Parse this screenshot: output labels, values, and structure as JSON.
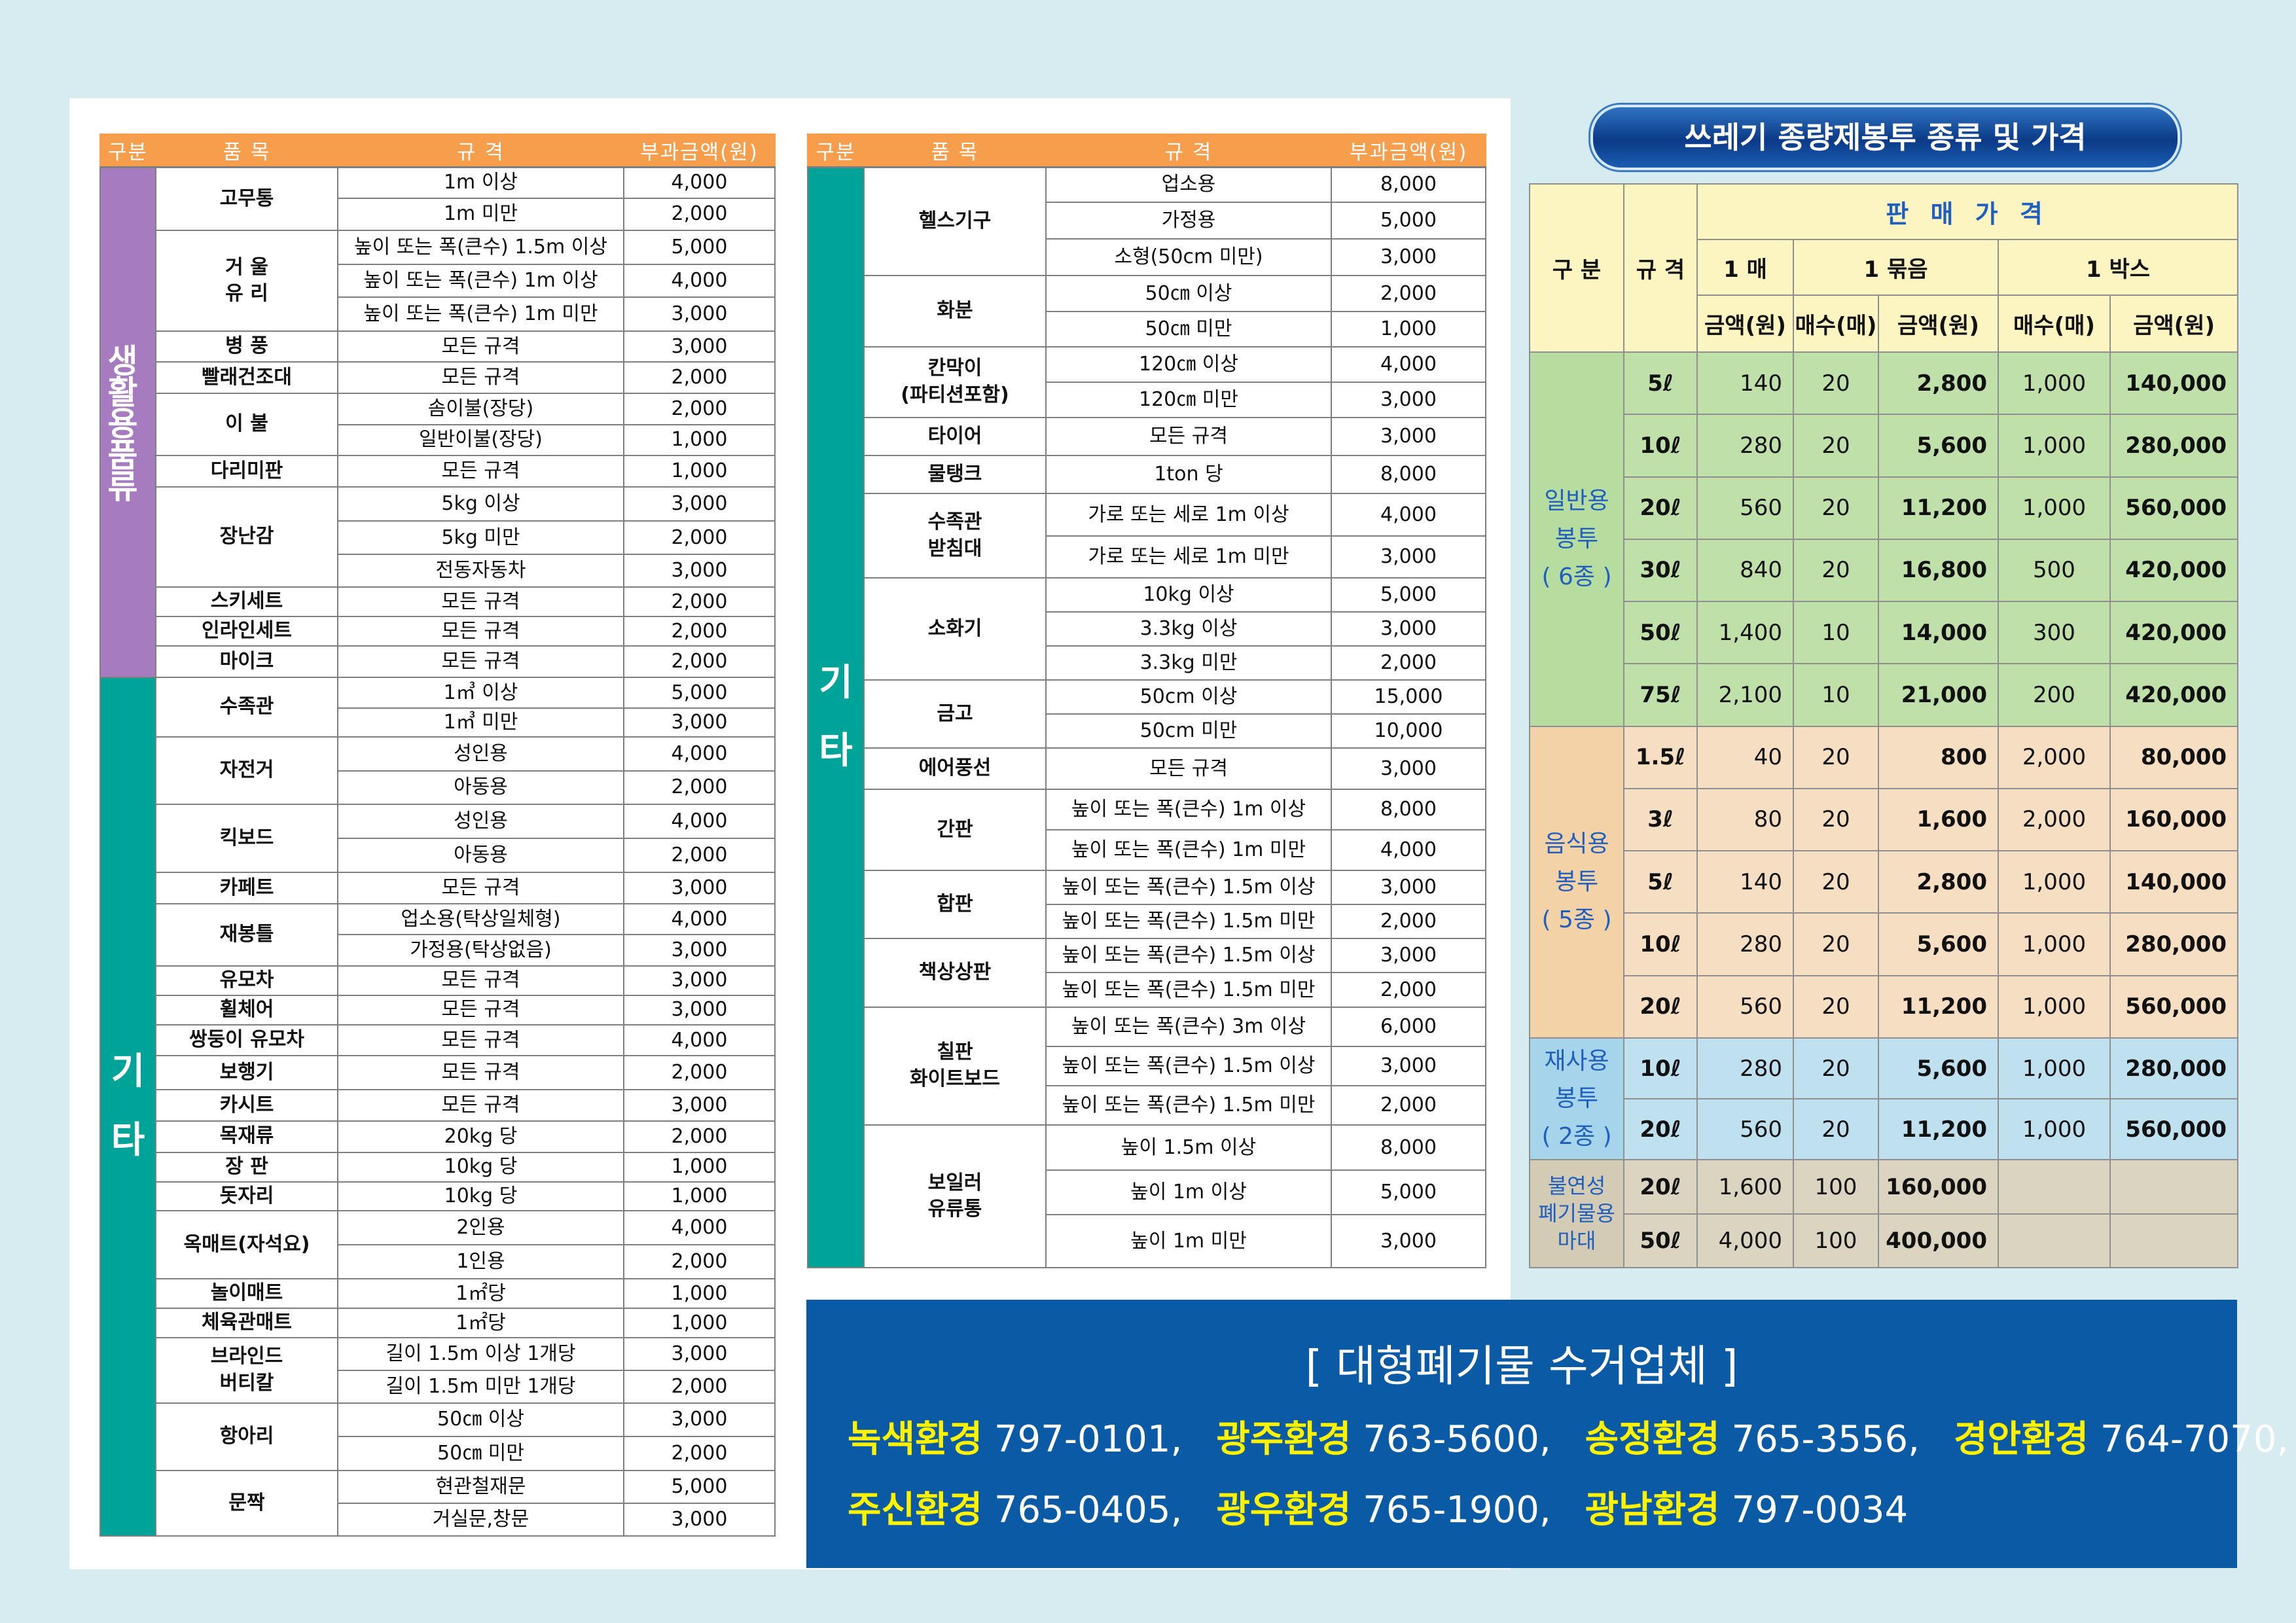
{
  "headers": {
    "category": "구분",
    "item": "품 목",
    "spec": "규 격",
    "fee": "부과금액(원)"
  },
  "left_table": {
    "categories": [
      {
        "label": "생활용품류"
      },
      {
        "label": "기 타",
        "chars": [
          "기",
          "타"
        ]
      }
    ],
    "rows": [
      {
        "item": "고무통",
        "spec": "1m 이상",
        "fee": "4,000"
      },
      {
        "spec": "1m 미만",
        "fee": "2,000"
      },
      {
        "item": "거 울\n유 리",
        "spec": "높이 또는 폭(큰수) 1.5m 이상",
        "fee": "5,000"
      },
      {
        "spec": "높이 또는 폭(큰수) 1m 이상",
        "fee": "4,000"
      },
      {
        "spec": "높이 또는 폭(큰수) 1m 미만",
        "fee": "3,000"
      },
      {
        "item": "병 풍",
        "spec": "모든 규격",
        "fee": "3,000"
      },
      {
        "item": "빨래건조대",
        "spec": "모든 규격",
        "fee": "2,000"
      },
      {
        "item": "이 불",
        "spec": "솜이불(장당)",
        "fee": "2,000"
      },
      {
        "spec": "일반이불(장당)",
        "fee": "1,000"
      },
      {
        "item": "다리미판",
        "spec": "모든 규격",
        "fee": "1,000"
      },
      {
        "item": "장난감",
        "spec": "5kg 이상",
        "fee": "3,000"
      },
      {
        "spec": "5kg 미만",
        "fee": "2,000"
      },
      {
        "spec": "전동자동차",
        "fee": "3,000"
      },
      {
        "item": "스키세트",
        "spec": "모든 규격",
        "fee": "2,000"
      },
      {
        "item": "인라인세트",
        "spec": "모든 규격",
        "fee": "2,000"
      },
      {
        "item": "마이크",
        "spec": "모든 규격",
        "fee": "2,000"
      },
      {
        "item": "수족관",
        "spec": "1㎥ 이상",
        "fee": "5,000"
      },
      {
        "spec": "1㎥ 미만",
        "fee": "3,000"
      },
      {
        "item": "자전거",
        "spec": "성인용",
        "fee": "4,000"
      },
      {
        "spec": "아동용",
        "fee": "2,000"
      },
      {
        "item": "킥보드",
        "spec": "성인용",
        "fee": "4,000"
      },
      {
        "spec": "아동용",
        "fee": "2,000"
      },
      {
        "item": "카페트",
        "spec": "모든 규격",
        "fee": "3,000"
      },
      {
        "item": "재봉틀",
        "spec": "업소용(탁상일체형)",
        "fee": "4,000"
      },
      {
        "spec": "가정용(탁상없음)",
        "fee": "3,000"
      },
      {
        "item": "유모차",
        "spec": "모든 규격",
        "fee": "3,000"
      },
      {
        "item": "휠체어",
        "spec": "모든 규격",
        "fee": "3,000"
      },
      {
        "item": "쌍둥이 유모차",
        "spec": "모든 규격",
        "fee": "4,000"
      },
      {
        "item": "보행기",
        "spec": "모든 규격",
        "fee": "2,000"
      },
      {
        "item": "카시트",
        "spec": "모든 규격",
        "fee": "3,000"
      },
      {
        "item": "목재류",
        "spec": "20kg 당",
        "fee": "2,000"
      },
      {
        "item": "장 판",
        "spec": "10kg 당",
        "fee": "1,000"
      },
      {
        "item": "돗자리",
        "spec": "10kg 당",
        "fee": "1,000"
      },
      {
        "item": "옥매트(자석요)",
        "spec": "2인용",
        "fee": "4,000"
      },
      {
        "spec": "1인용",
        "fee": "2,000"
      },
      {
        "item": "놀이매트",
        "spec": "1㎡당",
        "fee": "1,000"
      },
      {
        "item": "체육관매트",
        "spec": "1㎡당",
        "fee": "1,000"
      },
      {
        "item": "브라인드\n버티칼",
        "spec": "길이 1.5m 이상 1개당",
        "fee": "3,000"
      },
      {
        "spec": "길이 1.5m 미만 1개당",
        "fee": "2,000"
      },
      {
        "item": "항아리",
        "spec": "50㎝ 이상",
        "fee": "3,000"
      },
      {
        "spec": "50㎝ 미만",
        "fee": "2,000"
      },
      {
        "item": "문짝",
        "spec": "현관철재문",
        "fee": "5,000"
      },
      {
        "spec": "거실문,창문",
        "fee": "3,000"
      }
    ]
  },
  "middle_table": {
    "category": {
      "label": "기 타",
      "chars": [
        "기",
        "타"
      ]
    },
    "rows": [
      {
        "item": "헬스기구",
        "spec": "업소용",
        "fee": "8,000"
      },
      {
        "spec": "가정용",
        "fee": "5,000"
      },
      {
        "spec": "소형(50cm 미만)",
        "fee": "3,000"
      },
      {
        "item": "화분",
        "spec": "50㎝ 이상",
        "fee": "2,000"
      },
      {
        "spec": "50㎝ 미만",
        "fee": "1,000"
      },
      {
        "item": "칸막이\n(파티션포함)",
        "spec": "120㎝ 이상",
        "fee": "4,000"
      },
      {
        "spec": "120㎝ 미만",
        "fee": "3,000"
      },
      {
        "item": "타이어",
        "spec": "모든 규격",
        "fee": "3,000"
      },
      {
        "item": "물탱크",
        "spec": "1ton 당",
        "fee": "8,000"
      },
      {
        "item": "수족관\n받침대",
        "spec": "가로 또는 세로 1m 이상",
        "fee": "4,000"
      },
      {
        "spec": "가로 또는 세로 1m 미만",
        "fee": "3,000"
      },
      {
        "item": "소화기",
        "spec": "10kg 이상",
        "fee": "5,000"
      },
      {
        "spec": "3.3kg 이상",
        "fee": "3,000"
      },
      {
        "spec": "3.3kg 미만",
        "fee": "2,000"
      },
      {
        "item": "금고",
        "spec": "50cm 이상",
        "fee": "15,000"
      },
      {
        "spec": "50cm 미만",
        "fee": "10,000"
      },
      {
        "item": "에어풍선",
        "spec": "모든 규격",
        "fee": "3,000"
      },
      {
        "item": "간판",
        "spec": "높이 또는 폭(큰수) 1m 이상",
        "fee": "8,000"
      },
      {
        "spec": "높이 또는 폭(큰수) 1m 미만",
        "fee": "4,000"
      },
      {
        "item": "합판",
        "spec": "높이 또는 폭(큰수) 1.5m 이상",
        "fee": "3,000"
      },
      {
        "spec": "높이 또는 폭(큰수) 1.5m 미만",
        "fee": "2,000"
      },
      {
        "item": "책상상판",
        "spec": "높이 또는 폭(큰수) 1.5m 이상",
        "fee": "3,000"
      },
      {
        "spec": "높이 또는 폭(큰수) 1.5m 미만",
        "fee": "2,000"
      },
      {
        "item": "칠판\n화이트보드",
        "spec": "높이 또는 폭(큰수) 3m 이상",
        "fee": "6,000"
      },
      {
        "spec": "높이 또는 폭(큰수) 1.5m 이상",
        "fee": "3,000"
      },
      {
        "spec": "높이 또는 폭(큰수) 1.5m 미만",
        "fee": "2,000"
      },
      {
        "item": "보일러\n유류통",
        "spec": "높이 1.5m 이상",
        "fee": "8,000"
      },
      {
        "spec": "높이 1m 이상",
        "fee": "5,000"
      },
      {
        "spec": "높이 1m 미만",
        "fee": "3,000"
      }
    ]
  },
  "price_table": {
    "title": "쓰레기 종량제봉투 종류 및 가격",
    "headers": {
      "category": "구 분",
      "size": "규 격",
      "sale_price": "판 매 가 격",
      "single": "1 매",
      "bundle": "1 묶음",
      "box": "1 박스",
      "amount": "금액(원)",
      "count": "매수(매)"
    },
    "groups": [
      {
        "label": "일반용\n봉투\n( 6종 )",
        "rows": [
          {
            "size": "5ℓ",
            "single": "140",
            "bundle_count": "20",
            "bundle_amount": "2,800",
            "box_count": "1,000",
            "box_amount": "140,000"
          },
          {
            "size": "10ℓ",
            "single": "280",
            "bundle_count": "20",
            "bundle_amount": "5,600",
            "box_count": "1,000",
            "box_amount": "280,000"
          },
          {
            "size": "20ℓ",
            "single": "560",
            "bundle_count": "20",
            "bundle_amount": "11,200",
            "box_count": "1,000",
            "box_amount": "560,000"
          },
          {
            "size": "30ℓ",
            "single": "840",
            "bundle_count": "20",
            "bundle_amount": "16,800",
            "box_count": "500",
            "box_amount": "420,000"
          },
          {
            "size": "50ℓ",
            "single": "1,400",
            "bundle_count": "10",
            "bundle_amount": "14,000",
            "box_count": "300",
            "box_amount": "420,000"
          },
          {
            "size": "75ℓ",
            "single": "2,100",
            "bundle_count": "10",
            "bundle_amount": "21,000",
            "box_count": "200",
            "box_amount": "420,000"
          }
        ]
      },
      {
        "label": "음식용\n봉투\n( 5종 )",
        "rows": [
          {
            "size": "1.5ℓ",
            "single": "40",
            "bundle_count": "20",
            "bundle_amount": "800",
            "box_count": "2,000",
            "box_amount": "80,000"
          },
          {
            "size": "3ℓ",
            "single": "80",
            "bundle_count": "20",
            "bundle_amount": "1,600",
            "box_count": "2,000",
            "box_amount": "160,000"
          },
          {
            "size": "5ℓ",
            "single": "140",
            "bundle_count": "20",
            "bundle_amount": "2,800",
            "box_count": "1,000",
            "box_amount": "140,000"
          },
          {
            "size": "10ℓ",
            "single": "280",
            "bundle_count": "20",
            "bundle_amount": "5,600",
            "box_count": "1,000",
            "box_amount": "280,000"
          },
          {
            "size": "20ℓ",
            "single": "560",
            "bundle_count": "20",
            "bundle_amount": "11,200",
            "box_count": "1,000",
            "box_amount": "560,000"
          }
        ]
      },
      {
        "label": "재사용\n봉투\n( 2종 )",
        "rows": [
          {
            "size": "10ℓ",
            "single": "280",
            "bundle_count": "20",
            "bundle_amount": "5,600",
            "box_count": "1,000",
            "box_amount": "280,000"
          },
          {
            "size": "20ℓ",
            "single": "560",
            "bundle_count": "20",
            "bundle_amount": "11,200",
            "box_count": "1,000",
            "box_amount": "560,000"
          }
        ]
      },
      {
        "label": "불연성\n폐기물용\n마대",
        "rows": [
          {
            "size": "20ℓ",
            "single": "1,600",
            "bundle_count": "100",
            "bundle_amount": "160,000",
            "box_count": "",
            "box_amount": ""
          },
          {
            "size": "50ℓ",
            "single": "4,000",
            "bundle_count": "100",
            "bundle_amount": "400,000",
            "box_count": "",
            "box_amount": ""
          }
        ]
      }
    ]
  },
  "collectors": {
    "heading": "[ 대형폐기물 수거업체 ]",
    "line1": [
      {
        "name": "녹색환경",
        "phone": " 797-0101,"
      },
      {
        "name": "광주환경",
        "phone": " 763-5600,"
      },
      {
        "name": "송정환경",
        "phone": " 765-3556,"
      },
      {
        "name": "경안환경",
        "phone": " 764-7070,"
      }
    ],
    "line2": [
      {
        "name": "주신환경",
        "phone": " 765-0405,"
      },
      {
        "name": "광우환경",
        "phone": " 765-1900,"
      },
      {
        "name": "광남환경",
        "phone": " 797-0034"
      }
    ]
  },
  "colors": {
    "header_orange": "#f79e4d",
    "category_purple": "#a67bbf",
    "category_teal": "#00a397",
    "collector_box": "#0a5aa6",
    "collector_name": "#fff200"
  }
}
